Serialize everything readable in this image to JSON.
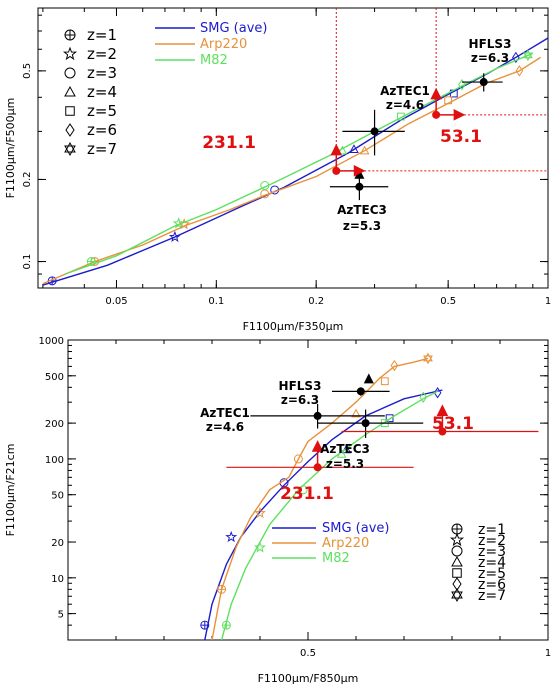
{
  "colors": {
    "smg": "#1c1ccc",
    "arp220": "#e8913a",
    "m82": "#5ee05e",
    "highlight": "#e01010",
    "black": "#000000",
    "axis": "#000000"
  },
  "legend": {
    "models": [
      {
        "name": "SMG (ave)",
        "color_key": "smg"
      },
      {
        "name": "Arp220",
        "color_key": "arp220"
      },
      {
        "name": "M82",
        "color_key": "m82"
      }
    ],
    "redshifts": [
      {
        "label": "z=1",
        "marker": "crossed-circle"
      },
      {
        "label": "z=2",
        "marker": "star"
      },
      {
        "label": "z=3",
        "marker": "circle"
      },
      {
        "label": "z=4",
        "marker": "triangle"
      },
      {
        "label": "z=5",
        "marker": "square"
      },
      {
        "label": "z=6",
        "marker": "diamond"
      },
      {
        "label": "z=7",
        "marker": "hexagram"
      }
    ]
  },
  "chart_data": [
    {
      "type": "line",
      "xlabel": "F1100μm/F350μm",
      "ylabel": "F1100μm/F500μm",
      "xscale": "log",
      "yscale": "log",
      "xlim": [
        0.029,
        1.0
      ],
      "ylim": [
        0.08,
        0.85
      ],
      "xticks": [
        0.05,
        0.1,
        0.2,
        0.5,
        1
      ],
      "xtick_labels": [
        "0.05",
        "0.1",
        "0.2",
        "0.5",
        "1"
      ],
      "yticks": [
        0.1,
        0.2,
        0.5
      ],
      "ytick_labels": [
        "0.1",
        "0.2",
        "0.5"
      ],
      "series": [
        {
          "name": "SMG (ave)",
          "color_key": "smg",
          "x": [
            0.03,
            0.047,
            0.075,
            0.12,
            0.16,
            0.25,
            0.36,
            0.5,
            0.66,
            0.82,
            1.0
          ],
          "y": [
            0.082,
            0.097,
            0.123,
            0.16,
            0.187,
            0.25,
            0.33,
            0.41,
            0.49,
            0.57,
            0.66
          ],
          "markers": [
            {
              "x": 0.032,
              "y": 0.085,
              "z": 1
            },
            {
              "x": 0.075,
              "y": 0.123,
              "z": 2
            },
            {
              "x": 0.15,
              "y": 0.183,
              "z": 3
            },
            {
              "x": 0.26,
              "y": 0.258,
              "z": 4
            },
            {
              "x": 0.52,
              "y": 0.413,
              "z": 5
            },
            {
              "x": 0.8,
              "y": 0.56,
              "z": 6
            }
          ]
        },
        {
          "name": "Arp220",
          "color_key": "arp220",
          "x": [
            0.03,
            0.043,
            0.06,
            0.08,
            0.11,
            0.14,
            0.2,
            0.28,
            0.38,
            0.5,
            0.65,
            0.82,
            0.95
          ],
          "y": [
            0.083,
            0.1,
            0.115,
            0.135,
            0.155,
            0.175,
            0.205,
            0.255,
            0.32,
            0.38,
            0.45,
            0.5,
            0.56
          ],
          "markers": [
            {
              "x": 0.043,
              "y": 0.1,
              "z": 1
            },
            {
              "x": 0.08,
              "y": 0.137,
              "z": 2
            },
            {
              "x": 0.14,
              "y": 0.177,
              "z": 3
            },
            {
              "x": 0.28,
              "y": 0.255,
              "z": 4
            },
            {
              "x": 0.5,
              "y": 0.39,
              "z": 5
            },
            {
              "x": 0.82,
              "y": 0.5,
              "z": 6
            }
          ]
        },
        {
          "name": "M82",
          "color_key": "m82",
          "x": [
            0.035,
            0.05,
            0.075,
            0.1,
            0.15,
            0.22,
            0.3,
            0.4,
            0.55,
            0.7,
            0.9
          ],
          "y": [
            0.09,
            0.105,
            0.135,
            0.155,
            0.195,
            0.245,
            0.3,
            0.36,
            0.44,
            0.51,
            0.58
          ],
          "markers": [
            {
              "x": 0.042,
              "y": 0.1,
              "z": 1
            },
            {
              "x": 0.077,
              "y": 0.138,
              "z": 2
            },
            {
              "x": 0.14,
              "y": 0.19,
              "z": 3
            },
            {
              "x": 0.24,
              "y": 0.255,
              "z": 4
            },
            {
              "x": 0.36,
              "y": 0.34,
              "z": 5
            },
            {
              "x": 0.55,
              "y": 0.445,
              "z": 6
            },
            {
              "x": 0.87,
              "y": 0.57,
              "z": 7
            }
          ]
        }
      ],
      "points": [
        {
          "name": "AzTEC1",
          "label": "AzTEC1",
          "sublabel": "z=4.6",
          "color_key": "black",
          "marker": "dot",
          "x": 0.3,
          "y": 0.3,
          "xerr": [
            0.24,
            0.37
          ],
          "yerr": [
            0.245,
            0.36
          ]
        },
        {
          "name": "HFLS3",
          "label": "HFLS3",
          "sublabel": "z=6.3",
          "color_key": "black",
          "marker": "dot",
          "x": 0.64,
          "y": 0.455,
          "xerr": [
            0.55,
            0.73
          ],
          "yerr": [
            0.42,
            0.49
          ]
        },
        {
          "name": "AzTEC3",
          "label": "AzTEC3",
          "sublabel": "z=5.3",
          "color_key": "black",
          "marker": "dot",
          "x": 0.27,
          "y": 0.188,
          "xerr": [
            0.22,
            0.33
          ],
          "yerr": [
            0.168,
            0.21
          ],
          "limit_marker": "triangle"
        },
        {
          "name": "231.1",
          "label": "231.1",
          "sublabel": "",
          "color_key": "highlight",
          "marker": "dot",
          "x": 0.23,
          "y": 0.215,
          "arrows": [
            "up",
            "right"
          ]
        },
        {
          "name": "53.1",
          "label": "53.1",
          "sublabel": "",
          "color_key": "highlight",
          "marker": "dot",
          "x": 0.46,
          "y": 0.345,
          "arrows": [
            "up",
            "right"
          ]
        }
      ]
    },
    {
      "type": "line",
      "xlabel": "F1100μm/F850μm",
      "ylabel": "F1100μm/F21cm",
      "xscale": "linear",
      "yscale": "log",
      "xlim": [
        0.0,
        1.0
      ],
      "ylim": [
        3,
        1000
      ],
      "xticks": [
        0.5,
        1.0
      ],
      "xtick_labels": [
        "0.5",
        "1"
      ],
      "yticks": [
        5,
        10,
        20,
        50,
        100,
        200,
        500,
        1000
      ],
      "ytick_labels": [
        "5",
        "10",
        "20",
        "50",
        "100",
        "200",
        "500",
        "1000"
      ],
      "series": [
        {
          "name": "SMG (ave)",
          "color_key": "smg",
          "x": [
            0.285,
            0.3,
            0.33,
            0.36,
            0.4,
            0.45,
            0.5,
            0.55,
            0.62,
            0.7,
            0.78
          ],
          "y": [
            3,
            6,
            13,
            22,
            36,
            60,
            95,
            145,
            230,
            320,
            380
          ],
          "markers": [
            {
              "x": 0.285,
              "y": 4,
              "z": 1
            },
            {
              "x": 0.34,
              "y": 22,
              "z": 2
            },
            {
              "x": 0.45,
              "y": 63,
              "z": 3
            },
            {
              "x": 0.58,
              "y": 120,
              "z": 4
            },
            {
              "x": 0.67,
              "y": 220,
              "z": 5
            },
            {
              "x": 0.77,
              "y": 360,
              "z": 6
            }
          ]
        },
        {
          "name": "Arp220",
          "color_key": "arp220",
          "x": [
            0.3,
            0.32,
            0.35,
            0.38,
            0.42,
            0.46,
            0.48,
            0.5,
            0.55,
            0.6,
            0.65,
            0.68,
            0.72,
            0.75
          ],
          "y": [
            3,
            8,
            18,
            32,
            55,
            70,
            100,
            140,
            200,
            300,
            480,
            600,
            650,
            700
          ],
          "markers": [
            {
              "x": 0.32,
              "y": 8,
              "z": 1
            },
            {
              "x": 0.4,
              "y": 35,
              "z": 2
            },
            {
              "x": 0.48,
              "y": 100,
              "z": 3
            },
            {
              "x": 0.6,
              "y": 240,
              "z": 4
            },
            {
              "x": 0.66,
              "y": 450,
              "z": 5
            },
            {
              "x": 0.68,
              "y": 610,
              "z": 6
            },
            {
              "x": 0.75,
              "y": 700,
              "z": 7
            }
          ]
        },
        {
          "name": "M82",
          "color_key": "m82",
          "x": [
            0.32,
            0.34,
            0.37,
            0.42,
            0.48,
            0.55,
            0.62,
            0.68,
            0.74,
            0.77
          ],
          "y": [
            3,
            6,
            12,
            28,
            55,
            100,
            160,
            230,
            320,
            370
          ],
          "markers": [
            {
              "x": 0.33,
              "y": 4,
              "z": 1
            },
            {
              "x": 0.4,
              "y": 18,
              "z": 2
            },
            {
              "x": 0.49,
              "y": 55,
              "z": 3
            },
            {
              "x": 0.57,
              "y": 110,
              "z": 4
            },
            {
              "x": 0.66,
              "y": 200,
              "z": 5
            },
            {
              "x": 0.74,
              "y": 330,
              "z": 6
            }
          ]
        }
      ],
      "points": [
        {
          "name": "AzTEC1",
          "label": "AzTEC1",
          "sublabel": "z=4.6",
          "color_key": "black",
          "marker": "dot",
          "x": 0.52,
          "y": 230,
          "xerr": [
            0.38,
            0.66
          ],
          "yerr": [
            180,
            290
          ]
        },
        {
          "name": "HFLS3",
          "label": "HFLS3",
          "sublabel": "z=6.3",
          "color_key": "black",
          "marker": "dot",
          "x": 0.61,
          "y": 370,
          "xerr": [
            0.55,
            0.67
          ],
          "yerr": [
            340,
            400
          ],
          "limit_marker": "triangle"
        },
        {
          "name": "AzTEC3",
          "label": "AzTEC3",
          "sublabel": "z=5.3",
          "color_key": "black",
          "marker": "dot",
          "x": 0.62,
          "y": 200,
          "xerr": [
            0.52,
            0.74
          ],
          "yerr": [
            150,
            260
          ]
        },
        {
          "name": "231.1",
          "label": "231.1",
          "sublabel": "",
          "color_key": "highlight",
          "marker": "dot",
          "x": 0.52,
          "y": 85,
          "xerr": [
            0.33,
            0.72
          ],
          "arrows": [
            "up"
          ]
        },
        {
          "name": "53.1",
          "label": "53.1",
          "sublabel": "",
          "color_key": "highlight",
          "marker": "dot",
          "x": 0.78,
          "y": 170,
          "xerr": [
            0.57,
            0.98
          ],
          "arrows": [
            "up"
          ]
        }
      ]
    }
  ]
}
